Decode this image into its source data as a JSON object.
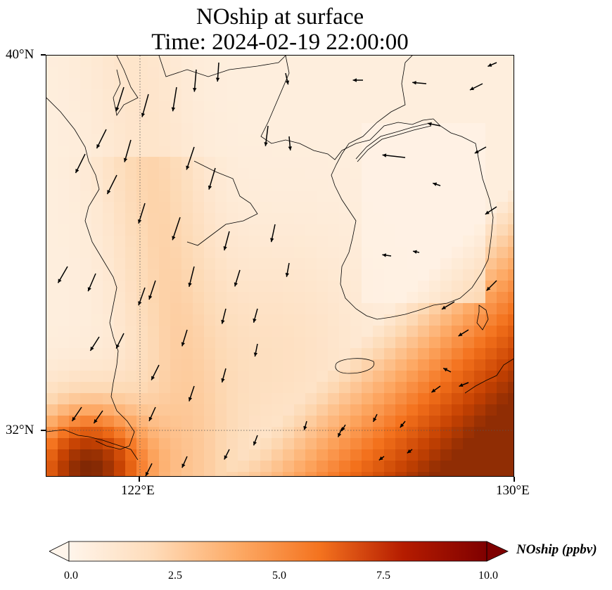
{
  "title": {
    "line1": "NOship at surface",
    "line2": "Time: 2024-02-19 22:00:00"
  },
  "map": {
    "extent": {
      "lon_min": 119,
      "lon_max": 130,
      "lat_min": 31,
      "lat_max": 40
    },
    "ticks": {
      "lat": [
        {
          "value": 40,
          "label": "40°N"
        },
        {
          "value": 32,
          "label": "32°N"
        }
      ],
      "lon": [
        {
          "value": 122,
          "label": "122°E"
        },
        {
          "value": 130,
          "label": "130°E"
        }
      ]
    },
    "gridlines": {
      "lons": [
        122
      ],
      "lats": [
        32
      ],
      "style": "dotted"
    },
    "field": {
      "variable": "NOship",
      "description_levels": "low over inland/northern areas, moderate plume along 122-123°E, high (>10) in southern corners near Shanghai coast and southeast of Korea/Kyushu approach"
    }
  },
  "colorbar": {
    "label": "NOship (ppbv)",
    "min": 0.0,
    "max": 10.0,
    "ticks": [
      "0.0",
      "2.5",
      "5.0",
      "7.5",
      "10.0"
    ],
    "colors": [
      "#fff5eb",
      "#fdd9b4",
      "#fda762",
      "#f3701b",
      "#c54102",
      "#7f2704"
    ],
    "extend": "both"
  }
}
